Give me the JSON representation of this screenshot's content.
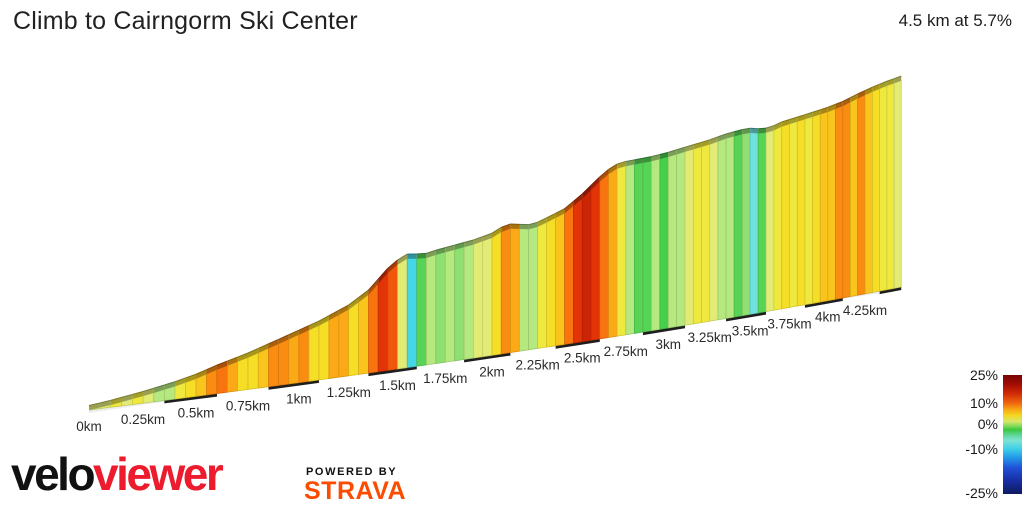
{
  "header": {
    "title": "Climb to Cairngorm Ski Center",
    "summary": "4.5 km at 5.7%"
  },
  "chart_data": {
    "type": "area",
    "title": "Climb to Cairngorm Ski Center",
    "distance_km": 4.5,
    "avg_gradient_pct": 5.7,
    "x_ticks_km": [
      0,
      0.25,
      0.5,
      0.75,
      1,
      1.25,
      1.5,
      1.75,
      2,
      2.25,
      2.5,
      2.75,
      3,
      3.25,
      3.5,
      3.75,
      4,
      4.25
    ],
    "x_tick_labels": [
      "0km",
      "0.25km",
      "0.5km",
      "0.75km",
      "1km",
      "1.25km",
      "1.5km",
      "1.75km",
      "2km",
      "2.25km",
      "2.5km",
      "2.75km",
      "3km",
      "3.25km",
      "3.5km",
      "3.75km",
      "4km",
      "4.25km"
    ],
    "profile": {
      "distance_km": [
        0,
        0.1,
        0.25,
        0.4,
        0.5,
        0.6,
        0.75,
        0.9,
        1.0,
        1.1,
        1.25,
        1.35,
        1.45,
        1.52,
        1.56,
        1.63,
        1.7,
        1.8,
        1.9,
        2.0,
        2.08,
        2.15,
        2.22,
        2.3,
        2.4,
        2.5,
        2.6,
        2.68,
        2.75,
        2.9,
        3.0,
        3.1,
        3.25,
        3.35,
        3.45,
        3.52,
        3.57,
        3.65,
        3.7,
        3.85,
        4.0,
        4.1,
        4.2,
        4.3,
        4.4,
        4.5
      ],
      "elevation_m": [
        0,
        3,
        9,
        16,
        22,
        30,
        40,
        52,
        60,
        68,
        83,
        98,
        122,
        134,
        137,
        133,
        136,
        139,
        142,
        147,
        156,
        153,
        150,
        156,
        164,
        179,
        197,
        209,
        211,
        212,
        214,
        217,
        221,
        225,
        227,
        227,
        223,
        225,
        228,
        232,
        236,
        240,
        246,
        251,
        255,
        258
      ]
    },
    "segments": {
      "length_km": 0.05,
      "gradient_pct": [
        3,
        3,
        4,
        3,
        4,
        3,
        2,
        2,
        4,
        5,
        6,
        8,
        9,
        7,
        5,
        5,
        6,
        8,
        8,
        7,
        8,
        5,
        5,
        7,
        7,
        5,
        6,
        9,
        11,
        10,
        3,
        -3,
        1,
        2,
        1.5,
        2,
        1.5,
        2,
        3,
        3,
        5,
        8,
        7,
        2,
        2,
        4,
        5,
        6,
        9,
        11,
        12,
        11,
        9,
        7,
        4,
        2,
        1,
        1,
        2,
        0.5,
        2,
        2,
        3,
        4,
        4,
        3,
        2,
        2,
        1,
        1.5,
        -2,
        1,
        3,
        4,
        5,
        4,
        5,
        4,
        5,
        6,
        6,
        8,
        8,
        6,
        8,
        6,
        5,
        4,
        4,
        3
      ]
    },
    "colormap_stops": [
      {
        "v": -25,
        "c": "#101a66"
      },
      {
        "v": -10,
        "c": "#1f6fe0"
      },
      {
        "v": -5,
        "c": "#28b8ea"
      },
      {
        "v": -3,
        "c": "#46d7e6"
      },
      {
        "v": -2,
        "c": "#6fe2df"
      },
      {
        "v": -1,
        "c": "#7de4c3"
      },
      {
        "v": 0,
        "c": "#34c940"
      },
      {
        "v": 1,
        "c": "#57d455"
      },
      {
        "v": 1.5,
        "c": "#8fe070"
      },
      {
        "v": 2,
        "c": "#b5e87f"
      },
      {
        "v": 3,
        "c": "#e2ec74"
      },
      {
        "v": 4,
        "c": "#efe93f"
      },
      {
        "v": 5,
        "c": "#f6dd26"
      },
      {
        "v": 6,
        "c": "#f9c51d"
      },
      {
        "v": 7,
        "c": "#fba916"
      },
      {
        "v": 8,
        "c": "#fb8c12"
      },
      {
        "v": 9,
        "c": "#f8740e"
      },
      {
        "v": 10,
        "c": "#f1580c"
      },
      {
        "v": 11,
        "c": "#e23407"
      },
      {
        "v": 13,
        "c": "#b81405"
      },
      {
        "v": 16,
        "c": "#7e0403"
      }
    ],
    "legend": {
      "tick_labels": [
        "25%",
        "10%",
        "0%",
        "-10%",
        "-25%"
      ],
      "gradient_stops": [
        {
          "p": 0,
          "c": "#7a0403"
        },
        {
          "p": 8,
          "c": "#a30d04"
        },
        {
          "p": 16,
          "c": "#d22d06"
        },
        {
          "p": 24,
          "c": "#f06a10"
        },
        {
          "p": 29,
          "c": "#f8a714"
        },
        {
          "p": 34,
          "c": "#f2d723"
        },
        {
          "p": 39,
          "c": "#dbe66a"
        },
        {
          "p": 43,
          "c": "#7fd95a"
        },
        {
          "p": 46,
          "c": "#3bc73e"
        },
        {
          "p": 51,
          "c": "#62d89f"
        },
        {
          "p": 55,
          "c": "#7ce3d4"
        },
        {
          "p": 62,
          "c": "#3ed0e8"
        },
        {
          "p": 70,
          "c": "#2293e6"
        },
        {
          "p": 78,
          "c": "#2050d8"
        },
        {
          "p": 88,
          "c": "#1830a8"
        },
        {
          "p": 100,
          "c": "#0e1a5e"
        }
      ]
    }
  },
  "footer": {
    "brand_black": "velo",
    "brand_red": "viewer",
    "powered_by": "POWERED BY",
    "strava": "STRAVA",
    "strava_color": "#fc4c02",
    "brand_red_color": "#ec1b2d"
  }
}
